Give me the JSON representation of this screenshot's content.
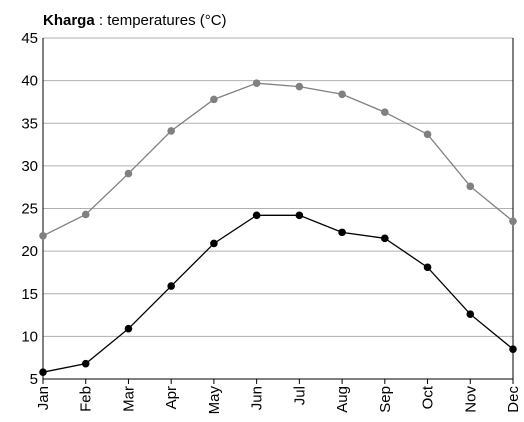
{
  "chart_data": {
    "type": "line",
    "title_bold": "Kharga",
    "title_rest": " : temperatures (°C)",
    "categories": [
      "Jan",
      "Feb",
      "Mar",
      "Apr",
      "May",
      "Jun",
      "Jul",
      "Aug",
      "Sep",
      "Oct",
      "Nov",
      "Dec"
    ],
    "series": [
      {
        "color": "#808080",
        "values": [
          21.8,
          24.3,
          29.1,
          34.1,
          37.8,
          39.7,
          39.3,
          38.4,
          36.3,
          33.7,
          27.6,
          23.5
        ]
      },
      {
        "color": "#000000",
        "values": [
          5.8,
          6.8,
          10.9,
          15.9,
          20.9,
          24.2,
          24.2,
          22.2,
          21.5,
          18.1,
          12.6,
          8.5
        ]
      }
    ],
    "ylim": [
      5,
      45
    ],
    "yticks": [
      5,
      10,
      15,
      20,
      25,
      30,
      35,
      40,
      45
    ],
    "grid": true
  }
}
